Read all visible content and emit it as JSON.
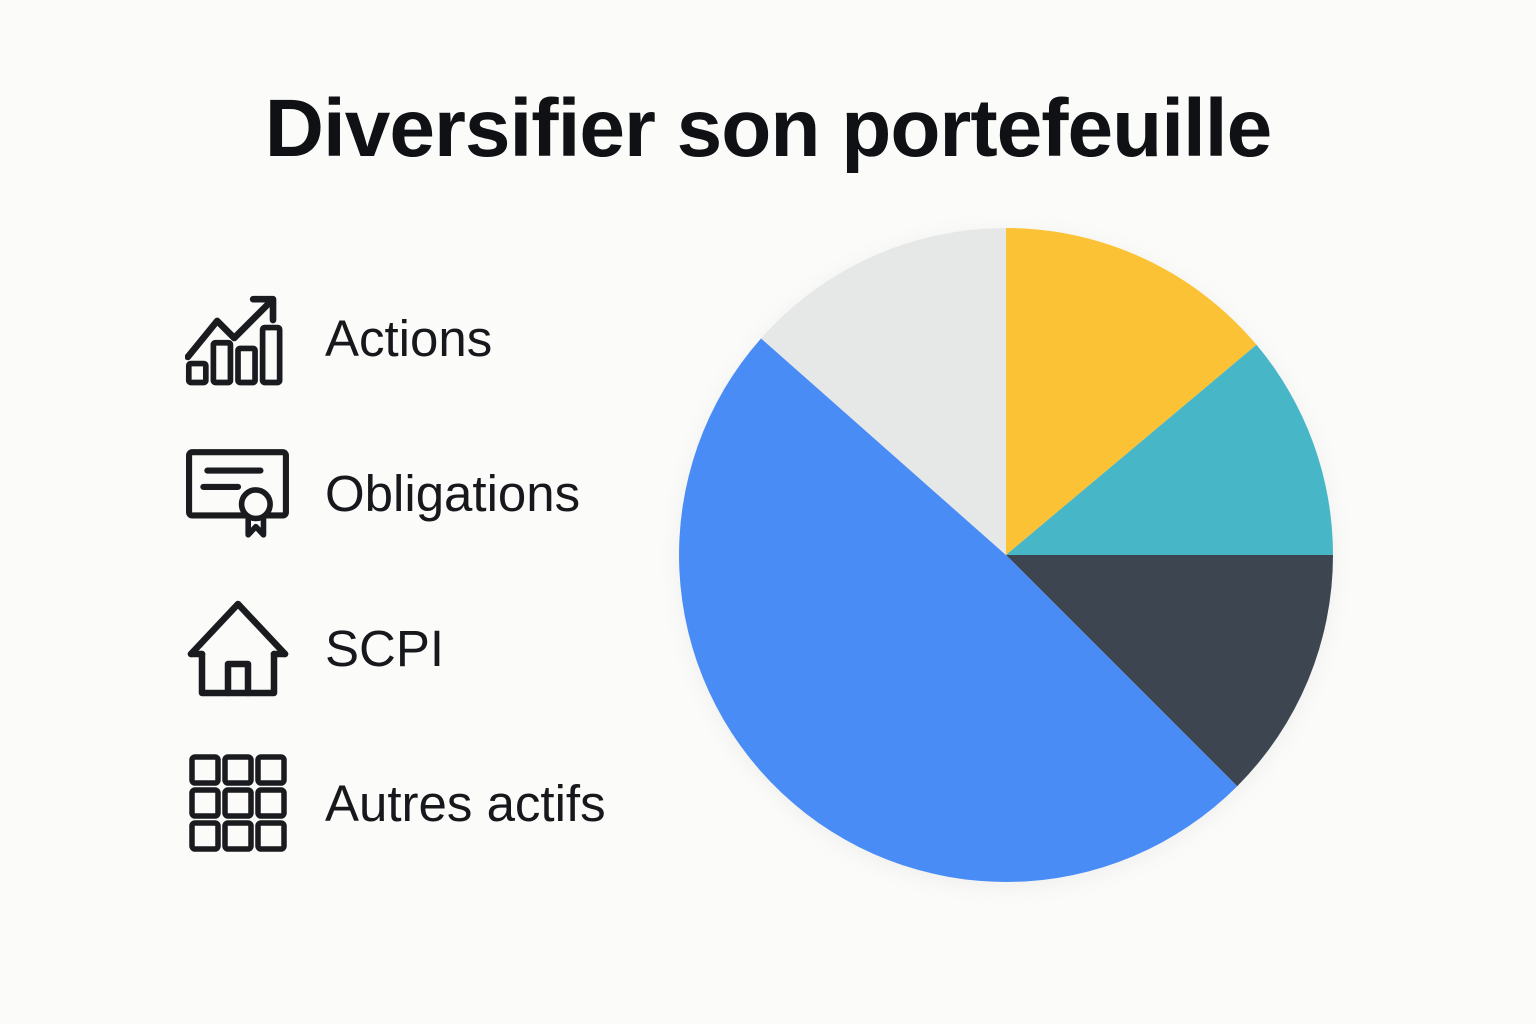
{
  "title": "Diversifier son portefeuille",
  "legend": {
    "items": [
      {
        "label": "Actions",
        "icon": "bar-chart-trending-up-icon"
      },
      {
        "label": "Obligations",
        "icon": "certificate-icon"
      },
      {
        "label": "SCPI",
        "icon": "house-icon"
      },
      {
        "label": "Autres actifs",
        "icon": "grid-icon"
      }
    ]
  },
  "chart_data": {
    "type": "pie",
    "title": "Diversifier son portefeuille",
    "legend_position": "left",
    "legend": [
      "Actions",
      "Obligations",
      "SCPI",
      "Autres actifs"
    ],
    "start_angle_deg": 0,
    "direction": "clockwise",
    "slices": [
      {
        "name": "yellow-slice",
        "color": "#FCC235",
        "start_deg": 0,
        "end_deg": 50,
        "angle_deg": 50,
        "percent": 13.9
      },
      {
        "name": "teal-slice",
        "color": "#47B6C6",
        "start_deg": 50,
        "end_deg": 90,
        "angle_deg": 40,
        "percent": 11.1
      },
      {
        "name": "dark-slate-slice",
        "color": "#3D4551",
        "start_deg": 90,
        "end_deg": 135,
        "angle_deg": 45,
        "percent": 12.5
      },
      {
        "name": "blue-slice",
        "color": "#4A8CF5",
        "start_deg": 135,
        "end_deg": 311.5,
        "angle_deg": 176.5,
        "percent": 49.0
      },
      {
        "name": "light-gray-slice",
        "color": "#E6E7E7",
        "start_deg": 311.5,
        "end_deg": 360,
        "angle_deg": 48.5,
        "percent": 13.5
      }
    ]
  },
  "colors": {
    "background": "#FBFBFA",
    "ink": "#17181B",
    "title_ink": "#101114"
  }
}
